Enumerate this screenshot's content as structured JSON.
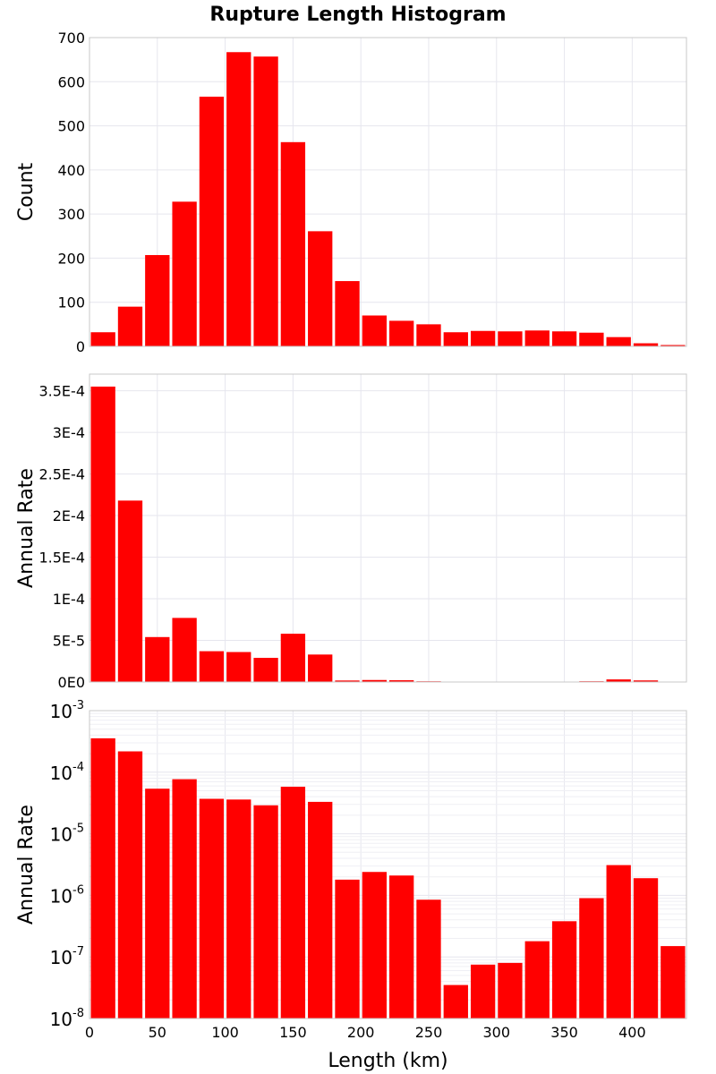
{
  "title": "Rupture Length Histogram",
  "colors": {
    "bar": "#ff0000",
    "grid": "#e6e6ee",
    "frame": "#c8c8c8",
    "background": "#ffffff"
  },
  "chart_data": [
    {
      "type": "bar",
      "panel": "top",
      "title": "Rupture Length Histogram",
      "xlabel": "",
      "ylabel": "Count",
      "bin_width": 20,
      "x": [
        10,
        30,
        50,
        70,
        90,
        110,
        130,
        150,
        170,
        190,
        210,
        230,
        250,
        270,
        290,
        310,
        330,
        350,
        370,
        390,
        410,
        430
      ],
      "values": [
        32,
        90,
        207,
        328,
        566,
        667,
        657,
        463,
        261,
        148,
        70,
        58,
        50,
        32,
        35,
        34,
        36,
        34,
        31,
        21,
        7,
        3
      ],
      "xlim": [
        0,
        440
      ],
      "ylim": [
        0,
        700
      ],
      "y_ticks": [
        0,
        100,
        200,
        300,
        400,
        500,
        600,
        700
      ],
      "y_tick_labels": [
        "0",
        "100",
        "200",
        "300",
        "400",
        "500",
        "600",
        "700"
      ],
      "x_tick_labels": [],
      "grid": true
    },
    {
      "type": "bar",
      "panel": "middle",
      "xlabel": "",
      "ylabel": "Annual Rate",
      "bin_width": 20,
      "x": [
        10,
        30,
        50,
        70,
        90,
        110,
        130,
        150,
        170,
        190,
        210,
        230,
        250,
        270,
        290,
        310,
        330,
        350,
        370,
        390,
        410,
        430
      ],
      "values": [
        0.000355,
        0.000218,
        5.4e-05,
        7.7e-05,
        3.7e-05,
        3.6e-05,
        2.9e-05,
        5.8e-05,
        3.3e-05,
        1.8e-06,
        2.4e-06,
        2.1e-06,
        8.5e-07,
        3.5e-08,
        7.5e-08,
        8e-08,
        1.8e-07,
        3.8e-07,
        9e-07,
        3.1e-06,
        1.9e-06,
        1.5e-07
      ],
      "xlim": [
        0,
        440
      ],
      "ylim": [
        0,
        0.00037
      ],
      "y_ticks": [
        0,
        5e-05,
        0.0001,
        0.00015,
        0.0002,
        0.00025,
        0.0003,
        0.00035
      ],
      "y_tick_labels": [
        "0E0",
        "5E-5",
        "1E-4",
        "1.5E-4",
        "2E-4",
        "2.5E-4",
        "3E-4",
        "3.5E-4"
      ],
      "x_tick_labels": [],
      "grid": true
    },
    {
      "type": "bar",
      "panel": "bottom",
      "xlabel": "Length (km)",
      "ylabel": "Annual Rate",
      "y_scale": "log",
      "bin_width": 20,
      "x": [
        10,
        30,
        50,
        70,
        90,
        110,
        130,
        150,
        170,
        190,
        210,
        230,
        250,
        270,
        290,
        310,
        330,
        350,
        370,
        390,
        410,
        430
      ],
      "values": [
        0.000355,
        0.000218,
        5.4e-05,
        7.7e-05,
        3.7e-05,
        3.6e-05,
        2.9e-05,
        5.8e-05,
        3.3e-05,
        1.8e-06,
        2.4e-06,
        2.1e-06,
        8.5e-07,
        3.5e-08,
        7.5e-08,
        8e-08,
        1.8e-07,
        3.8e-07,
        9e-07,
        3.1e-06,
        1.9e-06,
        1.5e-07
      ],
      "xlim": [
        0,
        440
      ],
      "ylim": [
        1e-08,
        0.001
      ],
      "y_ticks": [
        1e-08,
        1e-07,
        1e-06,
        1e-05,
        0.0001,
        0.001
      ],
      "y_tick_labels": [
        {
          "base": "10",
          "exp": "-8"
        },
        {
          "base": "10",
          "exp": "-7"
        },
        {
          "base": "10",
          "exp": "-6"
        },
        {
          "base": "10",
          "exp": "-5"
        },
        {
          "base": "10",
          "exp": "-4"
        },
        {
          "base": "10",
          "exp": "-3"
        }
      ],
      "x_ticks": [
        0,
        50,
        100,
        150,
        200,
        250,
        300,
        350,
        400
      ],
      "x_tick_labels": [
        "0",
        "50",
        "100",
        "150",
        "200",
        "250",
        "300",
        "350",
        "400"
      ],
      "grid": true
    }
  ]
}
